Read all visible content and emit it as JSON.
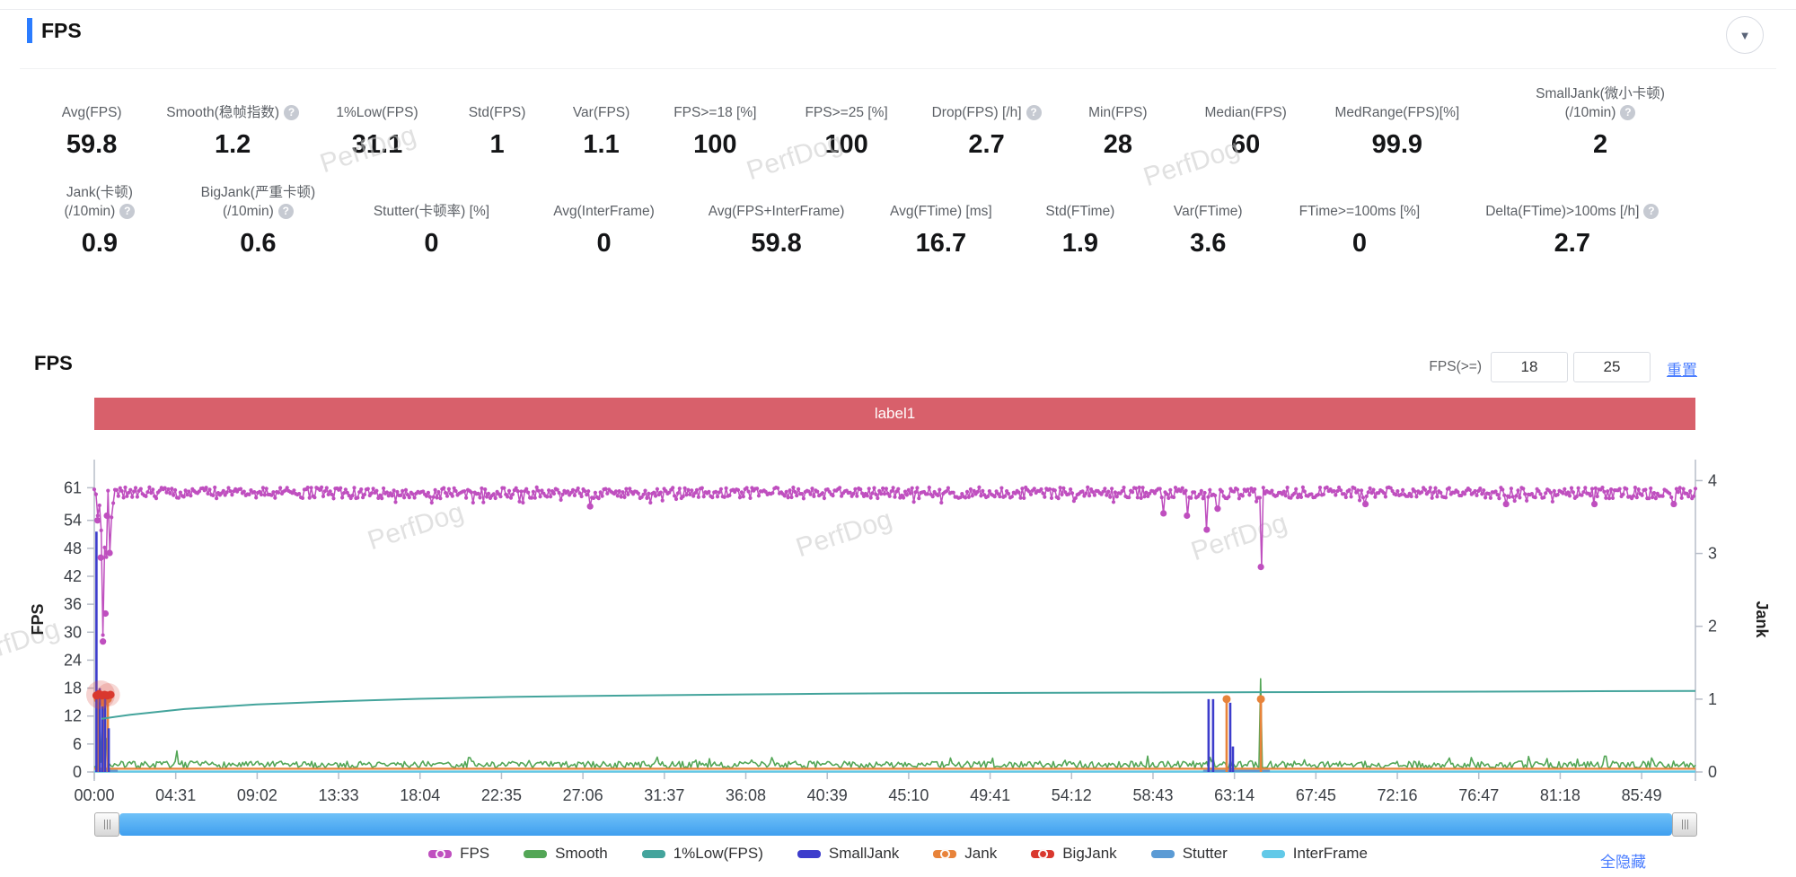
{
  "page": {
    "watermark": "PerfDog"
  },
  "icons": {
    "help": "?",
    "collapse": "▼"
  },
  "header": {
    "title": "FPS",
    "accent": "#2b7cff"
  },
  "stats_row1": [
    {
      "label_lines": [
        "Avg(FPS)"
      ],
      "help": false,
      "value": "59.8"
    },
    {
      "label_lines": [
        "Smooth(稳帧指数)"
      ],
      "help": true,
      "value": "1.2"
    },
    {
      "label_lines": [
        "1%Low(FPS)"
      ],
      "help": false,
      "value": "31.1"
    },
    {
      "label_lines": [
        "Std(FPS)"
      ],
      "help": false,
      "value": "1"
    },
    {
      "label_lines": [
        "Var(FPS)"
      ],
      "help": false,
      "value": "1.1"
    },
    {
      "label_lines": [
        "FPS>=18 [%]"
      ],
      "help": false,
      "value": "100"
    },
    {
      "label_lines": [
        "FPS>=25 [%]"
      ],
      "help": false,
      "value": "100"
    },
    {
      "label_lines": [
        "Drop(FPS) [/h]"
      ],
      "help": true,
      "value": "2.7"
    },
    {
      "label_lines": [
        "Min(FPS)"
      ],
      "help": false,
      "value": "28"
    },
    {
      "label_lines": [
        "Median(FPS)"
      ],
      "help": false,
      "value": "60"
    },
    {
      "label_lines": [
        "MedRange(FPS)[%]"
      ],
      "help": false,
      "value": "99.9"
    },
    {
      "label_lines": [
        "SmallJank(微小卡顿)",
        "(/10min)"
      ],
      "help": true,
      "value": "2"
    }
  ],
  "stats_row2": [
    {
      "label_lines": [
        "Jank(卡顿)",
        "(/10min)"
      ],
      "help": true,
      "value": "0.9"
    },
    {
      "label_lines": [
        "BigJank(严重卡顿)",
        "(/10min)"
      ],
      "help": true,
      "value": "0.6"
    },
    {
      "label_lines": [
        "Stutter(卡顿率) [%]"
      ],
      "help": false,
      "value": "0"
    },
    {
      "label_lines": [
        "Avg(InterFrame)"
      ],
      "help": false,
      "value": "0"
    },
    {
      "label_lines": [
        "Avg(FPS+InterFrame)"
      ],
      "help": false,
      "value": "59.8"
    },
    {
      "label_lines": [
        "Avg(FTime) [ms]"
      ],
      "help": false,
      "value": "16.7"
    },
    {
      "label_lines": [
        "Std(FTime)"
      ],
      "help": false,
      "value": "1.9"
    },
    {
      "label_lines": [
        "Var(FTime)"
      ],
      "help": false,
      "value": "3.6"
    },
    {
      "label_lines": [
        "FTime>=100ms [%]"
      ],
      "help": false,
      "value": "0"
    },
    {
      "label_lines": [
        "Delta(FTime)>100ms [/h]"
      ],
      "help": true,
      "value": "2.7"
    }
  ],
  "chart_section": {
    "title": "FPS",
    "fps_ge_label": "FPS(>=)",
    "threshold1": "18",
    "threshold2": "25",
    "reset_label": "重置",
    "hide_all_label": "全隐藏",
    "banner_label": "label1",
    "banner_color": "#d8606b",
    "link_color": "#4a7dff"
  },
  "chart_data": {
    "type": "line",
    "x_axis": {
      "min": 0,
      "max": 88.8,
      "tick_interval_min": 4.5167,
      "tick_labels": [
        "00:00",
        "04:31",
        "09:02",
        "13:33",
        "18:04",
        "22:35",
        "27:06",
        "31:37",
        "36:08",
        "40:39",
        "45:10",
        "49:41",
        "54:12",
        "58:43",
        "63:14",
        "67:45",
        "72:16",
        "76:47",
        "81:18",
        "85:49"
      ]
    },
    "fps_axis": {
      "title": "FPS",
      "ticks": [
        61,
        54,
        48,
        42,
        36,
        30,
        24,
        18,
        12,
        6,
        0
      ],
      "max": 65.5
    },
    "jank_axis": {
      "title": "Jank",
      "ticks": [
        4,
        3,
        2,
        1,
        0
      ],
      "max": 4.19
    },
    "series": [
      {
        "name": "InterFrame",
        "color": "#62c9e8",
        "axis": "jank",
        "render": "segments",
        "level": 0.005,
        "ranges": [
          [
            0,
            88.8
          ]
        ]
      },
      {
        "name": "Stutter",
        "color": "#5b9bd5",
        "axis": "jank",
        "render": "segments",
        "level": 0.015,
        "ranges": [
          [
            0.05,
            1.3
          ],
          [
            61.5,
            65.2
          ]
        ]
      },
      {
        "name": "Smooth",
        "color": "#53a656",
        "axis": "fps",
        "render": "noisy_low",
        "base": [
          0.8,
          2.3
        ],
        "chaos": [
          [
            0,
            1.5
          ],
          [
            0.25,
            2
          ],
          [
            0.3,
            21
          ],
          [
            0.36,
            2
          ],
          [
            0.44,
            2.5
          ],
          [
            0.5,
            23
          ],
          [
            0.56,
            2
          ],
          [
            0.62,
            12
          ],
          [
            0.7,
            1.5
          ]
        ],
        "spikes": [
          [
            4.6,
            4.5
          ],
          [
            31.2,
            3.2
          ],
          [
            47.5,
            3.0
          ],
          [
            64.7,
            20
          ],
          [
            76.4,
            3.1
          ],
          [
            83.8,
            3.4
          ]
        ]
      },
      {
        "name": "Jank",
        "color": "#e8833a",
        "axis": "jank",
        "render": "spikes",
        "marker": true,
        "baseline": 0.045,
        "spikes": [
          [
            0.2,
            1.0
          ],
          [
            0.5,
            0.95
          ],
          [
            0.75,
            1.0
          ],
          [
            62.8,
            1.0
          ],
          [
            64.7,
            1.0
          ]
        ]
      },
      {
        "name": "SmallJank",
        "color": "#3d3dcc",
        "axis": "jank",
        "render": "spikes",
        "marker": false,
        "spikes": [
          [
            0.12,
            3.3
          ],
          [
            0.3,
            1.15
          ],
          [
            0.45,
            0.9
          ],
          [
            0.6,
            1.05
          ],
          [
            0.8,
            0.6
          ],
          [
            61.8,
            1.0
          ],
          [
            62.05,
            1.0
          ],
          [
            63.0,
            0.95
          ],
          [
            63.15,
            0.35
          ]
        ]
      },
      {
        "name": "BigJank",
        "color": "#d9382e",
        "axis": "jank",
        "render": "dots_cluster",
        "halo": true,
        "points": [
          [
            0.12,
            1.05
          ],
          [
            0.27,
            1.07
          ],
          [
            0.42,
            1.05
          ],
          [
            0.57,
            1.06
          ],
          [
            0.72,
            1.05
          ],
          [
            0.9,
            1.06
          ]
        ]
      },
      {
        "name": "1%Low(FPS)",
        "color": "#44a49c",
        "axis": "fps",
        "render": "smooth_line",
        "points": [
          [
            0.4,
            11.4
          ],
          [
            2,
            12.3
          ],
          [
            5,
            13.5
          ],
          [
            9,
            14.5
          ],
          [
            13,
            15.1
          ],
          [
            18,
            15.7
          ],
          [
            23,
            16.1
          ],
          [
            27,
            16.3
          ],
          [
            32,
            16.5
          ],
          [
            36,
            16.65
          ],
          [
            41,
            16.8
          ],
          [
            45,
            16.9
          ],
          [
            50,
            16.95
          ],
          [
            54,
            17.0
          ],
          [
            59,
            17.05
          ],
          [
            63,
            17.1
          ],
          [
            68,
            17.15
          ],
          [
            72,
            17.2
          ],
          [
            77,
            17.25
          ],
          [
            81,
            17.3
          ],
          [
            88.8,
            17.4
          ]
        ]
      },
      {
        "name": "FPS",
        "color": "#bf4fbf",
        "axis": "fps",
        "render": "noisy_band",
        "band": [
          58.6,
          61.3
        ],
        "chaos": [
          [
            0,
            61
          ],
          [
            0.06,
            57.5
          ],
          [
            0.12,
            60
          ],
          [
            0.18,
            54
          ],
          [
            0.24,
            59.5
          ],
          [
            0.3,
            56
          ],
          [
            0.36,
            46
          ],
          [
            0.42,
            60
          ],
          [
            0.48,
            28
          ],
          [
            0.54,
            58
          ],
          [
            0.62,
            34
          ],
          [
            0.7,
            55
          ],
          [
            0.78,
            61
          ],
          [
            0.85,
            47
          ],
          [
            0.95,
            54
          ],
          [
            1.05,
            58
          ],
          [
            1.15,
            60.5
          ],
          [
            1.25,
            60
          ]
        ],
        "chaos_markers": [
          [
            0.18,
            54
          ],
          [
            0.36,
            46
          ],
          [
            0.48,
            28
          ],
          [
            0.62,
            34
          ],
          [
            0.7,
            55
          ],
          [
            0.85,
            47
          ]
        ],
        "dips": [
          [
            27.5,
            57
          ],
          [
            59.3,
            55.5
          ],
          [
            60.6,
            55
          ],
          [
            61.7,
            52
          ],
          [
            62.3,
            56.5
          ],
          [
            64.7,
            44
          ],
          [
            70.5,
            57.5
          ],
          [
            78.3,
            57.5
          ],
          [
            83.2,
            57.5
          ],
          [
            87.6,
            57.5
          ]
        ]
      }
    ],
    "legend": [
      {
        "label": "FPS",
        "color": "#bf4fbf",
        "dot": true
      },
      {
        "label": "Smooth",
        "color": "#53a656",
        "dot": false
      },
      {
        "label": "1%Low(FPS)",
        "color": "#44a49c",
        "dot": false
      },
      {
        "label": "SmallJank",
        "color": "#3d3dcc",
        "dot": false
      },
      {
        "label": "Jank",
        "color": "#e8833a",
        "dot": true
      },
      {
        "label": "BigJank",
        "color": "#d9382e",
        "dot": true
      },
      {
        "label": "Stutter",
        "color": "#5b9bd5",
        "dot": false
      },
      {
        "label": "InterFrame",
        "color": "#62c9e8",
        "dot": false
      }
    ]
  }
}
